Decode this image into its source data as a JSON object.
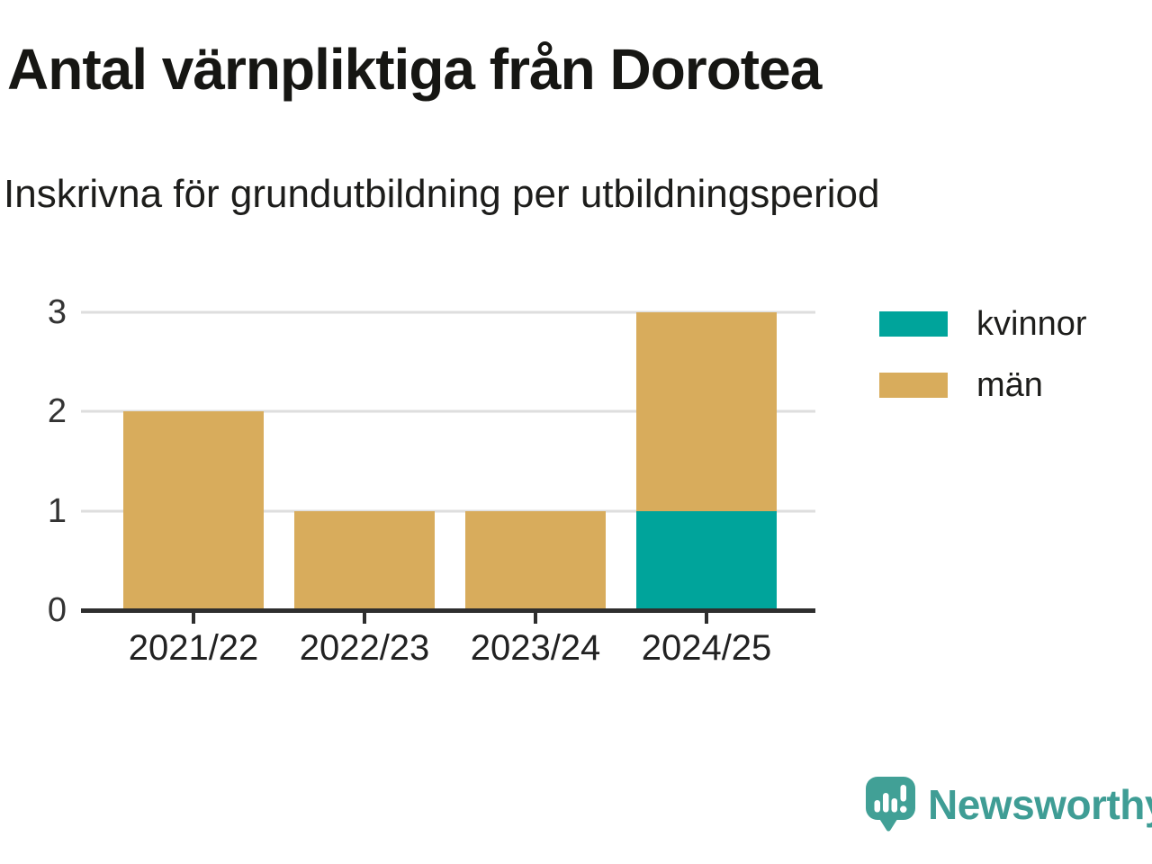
{
  "title": "Antal värnpliktiga från Dorotea",
  "subtitle": "Inskrivna för grundutbildning per utbildningsperiod",
  "chart_data": {
    "type": "bar",
    "stacked": true,
    "categories": [
      "2021/22",
      "2022/23",
      "2023/24",
      "2024/25"
    ],
    "series": [
      {
        "name": "kvinnor",
        "color": "#00a49b",
        "values": [
          0,
          0,
          0,
          1
        ]
      },
      {
        "name": "män",
        "color": "#d8ac5c",
        "values": [
          2,
          1,
          1,
          2
        ]
      }
    ],
    "totals": [
      2,
      1,
      1,
      3
    ],
    "ylim": [
      0,
      3
    ],
    "yticks": [
      0,
      1,
      2,
      3
    ],
    "grid": true,
    "legend_position": "right"
  },
  "legend": {
    "items": [
      {
        "label": "kvinnor",
        "color": "#00a49b"
      },
      {
        "label": "män",
        "color": "#d8ac5c"
      }
    ]
  },
  "branding": {
    "logo_text": "Newsworthy",
    "logo_color": "#41a096",
    "text_color": "#3f9d95"
  },
  "colors": {
    "background": "#ffffff",
    "gridline": "#dedede",
    "axis": "#2e2e2e",
    "title_text": "#161613",
    "tick_text": "#333333"
  }
}
